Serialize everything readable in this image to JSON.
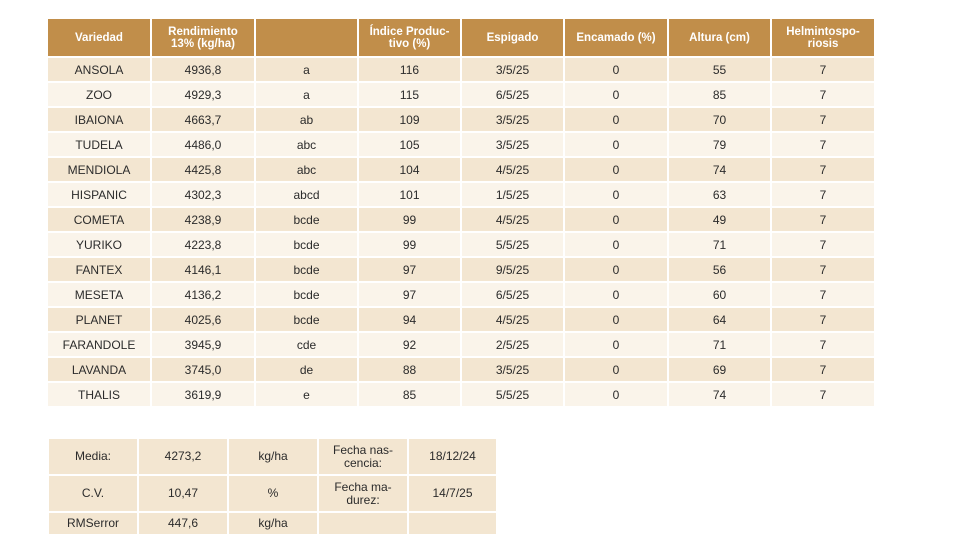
{
  "table": {
    "headers": [
      "Variedad",
      "Rendimiento 13% (kg/ha)",
      "",
      "Índice Produc- tivo (%)",
      "Espigado",
      "Encamado (%)",
      "Altura (cm)",
      "Helmintospo- riosis"
    ],
    "rows": [
      [
        "ANSOLA",
        "4936,8",
        "a",
        "116",
        "3/5/25",
        "0",
        "55",
        "7"
      ],
      [
        "ZOO",
        "4929,3",
        "a",
        "115",
        "6/5/25",
        "0",
        "85",
        "7"
      ],
      [
        "IBAIONA",
        "4663,7",
        "ab",
        "109",
        "3/5/25",
        "0",
        "70",
        "7"
      ],
      [
        "TUDELA",
        "4486,0",
        "abc",
        "105",
        "3/5/25",
        "0",
        "79",
        "7"
      ],
      [
        "MENDIOLA",
        "4425,8",
        "abc",
        "104",
        "4/5/25",
        "0",
        "74",
        "7"
      ],
      [
        "HISPANIC",
        "4302,3",
        "abcd",
        "101",
        "1/5/25",
        "0",
        "63",
        "7"
      ],
      [
        "COMETA",
        "4238,9",
        "bcde",
        "99",
        "4/5/25",
        "0",
        "49",
        "7"
      ],
      [
        "YURIKO",
        "4223,8",
        "bcde",
        "99",
        "5/5/25",
        "0",
        "71",
        "7"
      ],
      [
        "FANTEX",
        "4146,1",
        "bcde",
        "97",
        "9/5/25",
        "0",
        "56",
        "7"
      ],
      [
        "MESETA",
        "4136,2",
        "bcde",
        "97",
        "6/5/25",
        "0",
        "60",
        "7"
      ],
      [
        "PLANET",
        "4025,6",
        "bcde",
        "94",
        "4/5/25",
        "0",
        "64",
        "7"
      ],
      [
        "FARANDOLE",
        "3945,9",
        "cde",
        "92",
        "2/5/25",
        "0",
        "71",
        "7"
      ],
      [
        "LAVANDA",
        "3745,0",
        "de",
        "88",
        "3/5/25",
        "0",
        "69",
        "7"
      ],
      [
        "THALIS",
        "3619,9",
        "e",
        "85",
        "5/5/25",
        "0",
        "74",
        "7"
      ]
    ]
  },
  "summary": {
    "media_label": "Media:",
    "media_value": "4273,2",
    "media_unit": "kg/ha",
    "nascencia_label": "Fecha nas- cencia:",
    "nascencia_value": "18/12/24",
    "cv_label": "C.V.",
    "cv_value": "10,47",
    "cv_unit": "%",
    "madurez_label": "Fecha ma- durez:",
    "madurez_value": "14/7/25",
    "rmserror_label": "RMSerror",
    "rmserror_value": "447,6",
    "rmserror_unit": "kg/ha"
  },
  "colors": {
    "header_bg": "#c18e4a",
    "row_dark": "#f3e6d1",
    "row_light": "#faf4ea"
  }
}
